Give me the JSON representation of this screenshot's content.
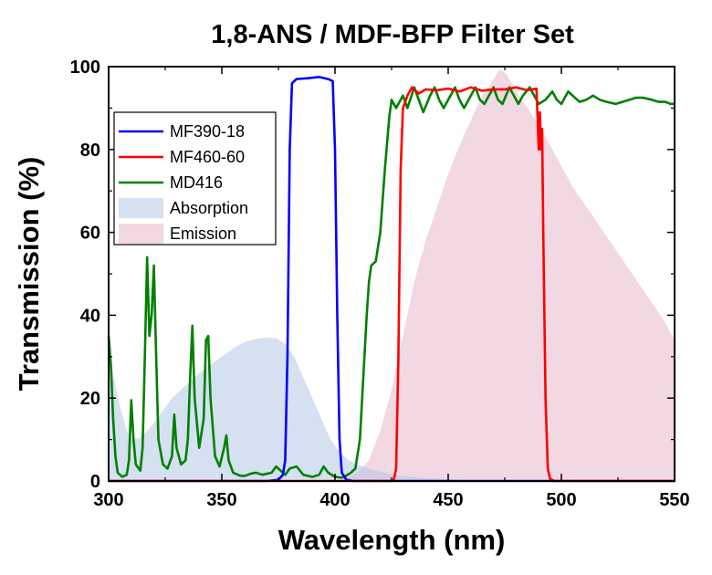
{
  "chart_data": {
    "type": "line",
    "title": "1,8-ANS / MDF-BFP Filter Set",
    "xlabel": "Wavelength (nm)",
    "ylabel": "Transmission (%)",
    "xlim": [
      300,
      550
    ],
    "ylim": [
      0,
      100
    ],
    "xticks": [
      300,
      350,
      400,
      450,
      500,
      550
    ],
    "yticks": [
      0,
      20,
      40,
      60,
      80,
      100
    ],
    "grid": false,
    "legend_position": "top-left",
    "series": [
      {
        "name": "MF390-18",
        "kind": "line",
        "color": "#0000ff",
        "points": [
          [
            300,
            0
          ],
          [
            370,
            0
          ],
          [
            375,
            0.3
          ],
          [
            377,
            1.5
          ],
          [
            378,
            5
          ],
          [
            379,
            30
          ],
          [
            380,
            80
          ],
          [
            381,
            96
          ],
          [
            383,
            97
          ],
          [
            388,
            97.2
          ],
          [
            393,
            97.5
          ],
          [
            397,
            97
          ],
          [
            399,
            96.5
          ],
          [
            400,
            80
          ],
          [
            401,
            40
          ],
          [
            402,
            10
          ],
          [
            403,
            2
          ],
          [
            405,
            0.3
          ],
          [
            408,
            0
          ],
          [
            550,
            0
          ]
        ]
      },
      {
        "name": "MF460-60",
        "kind": "line",
        "color": "#ff0000",
        "points": [
          [
            300,
            0
          ],
          [
            425,
            0
          ],
          [
            426,
            0.3
          ],
          [
            427,
            3
          ],
          [
            428,
            30
          ],
          [
            429,
            75
          ],
          [
            430,
            90
          ],
          [
            432,
            93
          ],
          [
            434,
            95
          ],
          [
            437,
            93.5
          ],
          [
            440,
            94.5
          ],
          [
            445,
            94.3
          ],
          [
            450,
            94.7
          ],
          [
            455,
            94
          ],
          [
            460,
            95
          ],
          [
            465,
            94.2
          ],
          [
            470,
            94.5
          ],
          [
            475,
            94.5
          ],
          [
            480,
            95
          ],
          [
            485,
            94.3
          ],
          [
            489,
            94.7
          ],
          [
            490,
            80
          ],
          [
            490.5,
            89
          ],
          [
            491,
            80
          ],
          [
            491.5,
            85
          ],
          [
            492,
            60
          ],
          [
            493,
            20
          ],
          [
            494,
            3
          ],
          [
            495,
            0.5
          ],
          [
            497,
            0
          ],
          [
            550,
            0
          ]
        ]
      },
      {
        "name": "MD416",
        "kind": "line",
        "color": "#008000",
        "points": [
          [
            300,
            35
          ],
          [
            301,
            28
          ],
          [
            302,
            15
          ],
          [
            303,
            6
          ],
          [
            304,
            2
          ],
          [
            306,
            1
          ],
          [
            308,
            1.5
          ],
          [
            309,
            5
          ],
          [
            310,
            19.5
          ],
          [
            311,
            10
          ],
          [
            312,
            4
          ],
          [
            314,
            2.5
          ],
          [
            315,
            8
          ],
          [
            316,
            30
          ],
          [
            317,
            54
          ],
          [
            318,
            35
          ],
          [
            319,
            40
          ],
          [
            320,
            52
          ],
          [
            321,
            30
          ],
          [
            322,
            10
          ],
          [
            324,
            4
          ],
          [
            326,
            3
          ],
          [
            328,
            6
          ],
          [
            329,
            16
          ],
          [
            330,
            8
          ],
          [
            332,
            4
          ],
          [
            334,
            5
          ],
          [
            335,
            10
          ],
          [
            336,
            25
          ],
          [
            337,
            37.5
          ],
          [
            338,
            20
          ],
          [
            340,
            8
          ],
          [
            342,
            15
          ],
          [
            343,
            34
          ],
          [
            344,
            35
          ],
          [
            345,
            20
          ],
          [
            347,
            6
          ],
          [
            349,
            3.5
          ],
          [
            351,
            8
          ],
          [
            352,
            11
          ],
          [
            353,
            5
          ],
          [
            355,
            2
          ],
          [
            358,
            1.3
          ],
          [
            360,
            1.2
          ],
          [
            363,
            1.8
          ],
          [
            365,
            2
          ],
          [
            368,
            1.5
          ],
          [
            372,
            2
          ],
          [
            374,
            3.5
          ],
          [
            376,
            2.5
          ],
          [
            378,
            1.5
          ],
          [
            380,
            3
          ],
          [
            383,
            3.5
          ],
          [
            386,
            1.5
          ],
          [
            390,
            1
          ],
          [
            393,
            1.5
          ],
          [
            395,
            3.5
          ],
          [
            397,
            2
          ],
          [
            400,
            1
          ],
          [
            403,
            0.8
          ],
          [
            405,
            1.3
          ],
          [
            407,
            2
          ],
          [
            409,
            3
          ],
          [
            411,
            10
          ],
          [
            413,
            30
          ],
          [
            414,
            40
          ],
          [
            415,
            48
          ],
          [
            416,
            52
          ],
          [
            418,
            53
          ],
          [
            420,
            60
          ],
          [
            422,
            75
          ],
          [
            424,
            88
          ],
          [
            425,
            92
          ],
          [
            427,
            90
          ],
          [
            428,
            91
          ],
          [
            430,
            93
          ],
          [
            432,
            90
          ],
          [
            435,
            95
          ],
          [
            437,
            92
          ],
          [
            439,
            89
          ],
          [
            442,
            93
          ],
          [
            444,
            95
          ],
          [
            446,
            92
          ],
          [
            448,
            90
          ],
          [
            450,
            92
          ],
          [
            453,
            95
          ],
          [
            455,
            92
          ],
          [
            457,
            90
          ],
          [
            460,
            93
          ],
          [
            462,
            95
          ],
          [
            464,
            92
          ],
          [
            466,
            91
          ],
          [
            468,
            93
          ],
          [
            470,
            95
          ],
          [
            472,
            92
          ],
          [
            474,
            91
          ],
          [
            477,
            95
          ],
          [
            479,
            93
          ],
          [
            481,
            91
          ],
          [
            483,
            93
          ],
          [
            486,
            95
          ],
          [
            488,
            93
          ],
          [
            490,
            91
          ],
          [
            493,
            92
          ],
          [
            496,
            94
          ],
          [
            498,
            92
          ],
          [
            500,
            91
          ],
          [
            503,
            94
          ],
          [
            505,
            93
          ],
          [
            508,
            91.5
          ],
          [
            511,
            92
          ],
          [
            514,
            93
          ],
          [
            517,
            92
          ],
          [
            520,
            91.5
          ],
          [
            524,
            91
          ],
          [
            527,
            91.5
          ],
          [
            530,
            92
          ],
          [
            533,
            92.5
          ],
          [
            536,
            92.5
          ],
          [
            540,
            92
          ],
          [
            543,
            91.5
          ],
          [
            546,
            91.5
          ],
          [
            548,
            91
          ],
          [
            550,
            91
          ]
        ]
      },
      {
        "name": "Absorption",
        "kind": "area",
        "color": "#b3c6e6",
        "points": [
          [
            300,
            30
          ],
          [
            302,
            26
          ],
          [
            305,
            18
          ],
          [
            308,
            12
          ],
          [
            311,
            10
          ],
          [
            314,
            10.5
          ],
          [
            317,
            12
          ],
          [
            320,
            14
          ],
          [
            324,
            17
          ],
          [
            328,
            20
          ],
          [
            332,
            22
          ],
          [
            336,
            24
          ],
          [
            340,
            26
          ],
          [
            345,
            28
          ],
          [
            350,
            30
          ],
          [
            355,
            32
          ],
          [
            360,
            33.5
          ],
          [
            365,
            34.3
          ],
          [
            370,
            34.6
          ],
          [
            374,
            34.5
          ],
          [
            378,
            33
          ],
          [
            382,
            30
          ],
          [
            386,
            25
          ],
          [
            390,
            20
          ],
          [
            394,
            15
          ],
          [
            398,
            10
          ],
          [
            402,
            7
          ],
          [
            406,
            5
          ],
          [
            410,
            4
          ],
          [
            415,
            3
          ],
          [
            420,
            2.2
          ],
          [
            425,
            1.6
          ],
          [
            430,
            1.2
          ],
          [
            440,
            0.7
          ],
          [
            450,
            0.4
          ],
          [
            460,
            0.2
          ],
          [
            470,
            0.1
          ],
          [
            480,
            0
          ],
          [
            550,
            0
          ]
        ]
      },
      {
        "name": "Emission",
        "kind": "area",
        "color": "#e6b8cc",
        "points": [
          [
            300,
            0
          ],
          [
            400,
            0
          ],
          [
            405,
            0.5
          ],
          [
            410,
            2
          ],
          [
            415,
            5
          ],
          [
            420,
            12
          ],
          [
            425,
            22
          ],
          [
            430,
            35
          ],
          [
            435,
            48
          ],
          [
            440,
            58
          ],
          [
            445,
            66
          ],
          [
            450,
            74
          ],
          [
            455,
            81
          ],
          [
            460,
            87
          ],
          [
            465,
            93
          ],
          [
            470,
            97
          ],
          [
            473,
            99.5
          ],
          [
            476,
            98
          ],
          [
            480,
            94
          ],
          [
            485,
            90
          ],
          [
            490,
            86
          ],
          [
            495,
            81
          ],
          [
            500,
            76
          ],
          [
            505,
            71
          ],
          [
            510,
            67
          ],
          [
            515,
            63
          ],
          [
            520,
            59
          ],
          [
            525,
            55
          ],
          [
            530,
            51
          ],
          [
            535,
            47
          ],
          [
            540,
            43
          ],
          [
            545,
            39
          ],
          [
            550,
            34
          ]
        ]
      }
    ]
  }
}
